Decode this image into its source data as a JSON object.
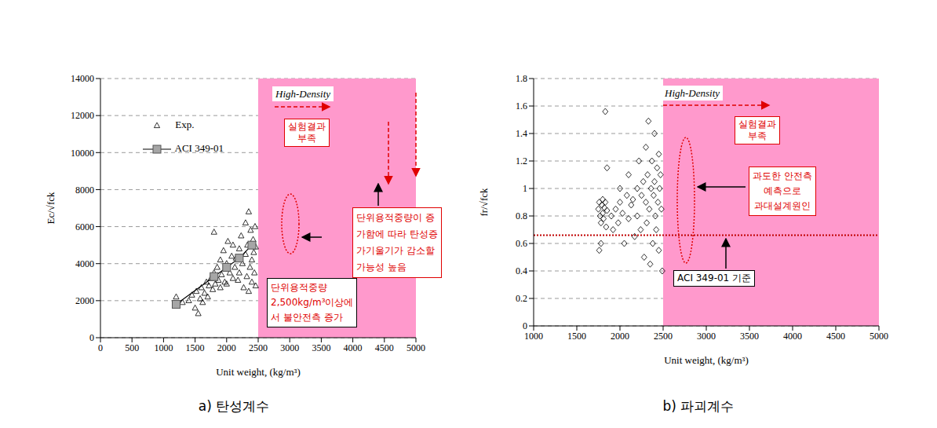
{
  "chart_data": [
    {
      "type": "scatter",
      "title": "a) 탄성계수",
      "x_label": "Unit weight, (kg/m³)",
      "y_label": "Ec/√fck",
      "xlim": [
        0,
        5000
      ],
      "xticks": [
        0,
        500,
        1000,
        1500,
        2000,
        2500,
        3000,
        3500,
        4000,
        4500,
        5000
      ],
      "ylim": [
        0,
        14000
      ],
      "yticks": [
        0,
        2000,
        4000,
        6000,
        8000,
        10000,
        12000,
        14000
      ],
      "grid": true,
      "legend": "upper left",
      "high_density": {
        "label": "High-Density",
        "range": [
          2500,
          5000
        ],
        "color": "#ff99cc"
      },
      "annotations": [
        {
          "text": [
            "실험결과",
            "부족"
          ]
        },
        {
          "text": [
            "단위용적중량이 증",
            "가함에 따라 탄성증",
            "가기울기가 감소할",
            "가능성 높음"
          ]
        },
        {
          "text": [
            "단위용적중량",
            "2,500kg/m³이상에",
            "서 불안전측 증가"
          ]
        }
      ],
      "series": [
        {
          "name": "Exp.",
          "color": "#000000",
          "marker": "triangle",
          "x": [
            1200,
            1300,
            1400,
            1450,
            1500,
            1520,
            1550,
            1580,
            1600,
            1620,
            1650,
            1680,
            1700,
            1720,
            1750,
            1780,
            1800,
            1800,
            1820,
            1850,
            1870,
            1900,
            1900,
            1920,
            1950,
            1970,
            2000,
            2000,
            2020,
            2050,
            2080,
            2100,
            2100,
            2130,
            2150,
            2180,
            2200,
            2200,
            2230,
            2250,
            2270,
            2300,
            2300,
            2320,
            2330,
            2350,
            2350,
            2370,
            2380,
            2400,
            2400,
            2420,
            2430,
            2440,
            2450,
            2460,
            2460
          ],
          "y": [
            2200,
            1900,
            2000,
            2300,
            1600,
            2500,
            1300,
            2100,
            2700,
            1900,
            2400,
            3000,
            2200,
            2800,
            3200,
            2600,
            3500,
            5700,
            2900,
            3800,
            3100,
            4200,
            2700,
            3400,
            4700,
            3000,
            4000,
            2900,
            5200,
            3500,
            4400,
            3200,
            5000,
            3800,
            4300,
            3100,
            4800,
            3500,
            5500,
            4000,
            2700,
            6200,
            4500,
            3300,
            5000,
            6800,
            2500,
            3800,
            5800,
            4200,
            3000,
            5300,
            4600,
            3500,
            6000,
            2800,
            4900
          ]
        },
        {
          "name": "ACI 349-01",
          "color": "#a6a6a6",
          "marker": "square",
          "line_style": "solid",
          "x": [
            1200,
            1800,
            2000,
            2200,
            2400
          ],
          "y": [
            1800,
            3300,
            3800,
            4300,
            5000
          ]
        }
      ]
    },
    {
      "type": "scatter",
      "title": "b) 파괴계수",
      "x_label": "Unit weight, (kg/m³)",
      "y_label": "fr/√fck",
      "xlim": [
        1000,
        5000
      ],
      "xticks": [
        1000,
        1500,
        2000,
        2500,
        3000,
        3500,
        4000,
        4500,
        5000
      ],
      "ylim": [
        0,
        1.8
      ],
      "yticks": [
        0,
        0.2,
        0.4,
        0.6,
        0.8,
        1,
        1.2,
        1.4,
        1.6,
        1.8
      ],
      "grid": true,
      "high_density": {
        "label": "High-Density",
        "range": [
          2500,
          5000
        ],
        "color": "#ff99cc"
      },
      "reference_line": {
        "label": "ACI 349-01 기준",
        "value": 0.66,
        "color": "#c00000",
        "line_style": "dotted"
      },
      "annotations": [
        {
          "text": [
            "실험결과",
            "부족"
          ]
        },
        {
          "text": [
            "과도한 안전측",
            "예측으로",
            "과대설계원인"
          ]
        }
      ],
      "series": [
        {
          "color": "#000000",
          "marker": "diamond",
          "x": [
            1750,
            1760,
            1770,
            1780,
            1790,
            1800,
            1800,
            1810,
            1820,
            1830,
            1840,
            1850,
            1760,
            1780,
            1830,
            1850,
            1900,
            1920,
            1950,
            1980,
            2000,
            2000,
            2030,
            2050,
            2080,
            2100,
            2100,
            2130,
            2150,
            2170,
            2200,
            2200,
            2220,
            2240,
            2250,
            2270,
            2280,
            2300,
            2300,
            2310,
            2320,
            2330,
            2340,
            2350,
            2360,
            2370,
            2380,
            2390,
            2400,
            2400,
            2410,
            2420,
            2430,
            2440,
            2450,
            2450,
            2460,
            2470,
            2480,
            2490
          ],
          "y": [
            0.85,
            0.9,
            0.8,
            0.75,
            0.88,
            0.92,
            0.82,
            0.78,
            0.86,
            0.9,
            0.72,
            0.84,
            0.55,
            0.6,
            1.56,
            1.15,
            0.8,
            0.7,
            0.85,
            0.75,
            0.9,
            1.0,
            0.82,
            0.6,
            0.95,
            0.78,
            1.1,
            0.88,
            0.92,
            0.65,
            1.0,
            0.8,
            1.2,
            0.7,
            0.95,
            1.05,
            0.5,
            1.3,
            0.9,
            0.75,
            1.1,
            1.49,
            0.85,
            0.45,
            1.0,
            1.2,
            0.6,
            0.95,
            1.4,
            1.05,
            0.8,
            0.7,
            1.15,
            0.9,
            1.25,
            0.55,
            1.0,
            1.1,
            0.85,
            0.4
          ]
        }
      ]
    }
  ]
}
